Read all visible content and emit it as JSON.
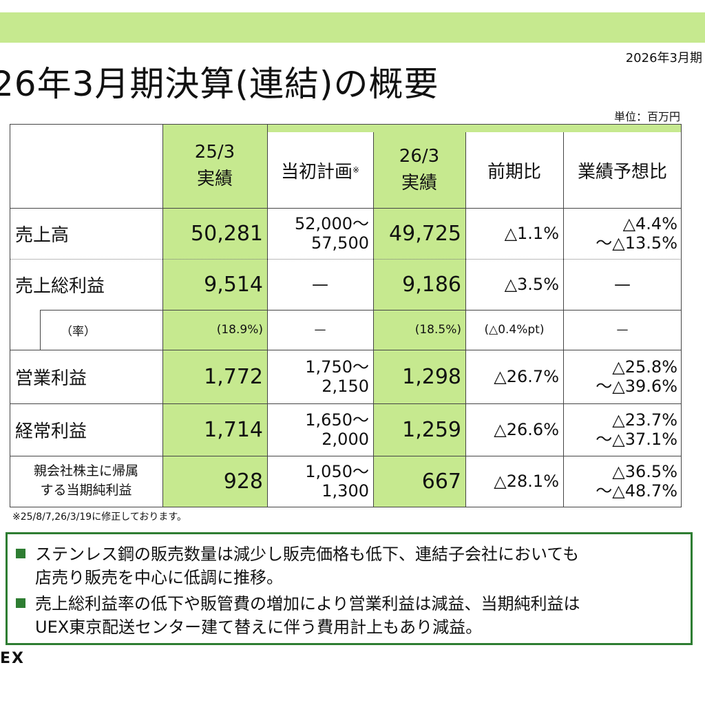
{
  "header": {
    "period_label": "2026年3月期",
    "title": "26年3月期決算(連結)の概要",
    "unit": "単位：百万円"
  },
  "table": {
    "columns": {
      "c25": [
        "25/3",
        "実績"
      ],
      "plan": "当初計画",
      "plan_mark": "※",
      "c26": [
        "26/3",
        "実績"
      ],
      "yoy": "前期比",
      "forecast": "業績予想比"
    },
    "rows": {
      "sales": {
        "label": "売上高",
        "v25": "50,281",
        "plan": [
          "52,000～",
          "57,500"
        ],
        "v26": "49,725",
        "yoy": "△1.1%",
        "forecast": [
          "△4.4%",
          "～△13.5%"
        ]
      },
      "gross": {
        "label": "売上総利益",
        "v25": "9,514",
        "plan": "—",
        "v26": "9,186",
        "yoy": "△3.5%",
        "forecast": "—"
      },
      "rate": {
        "label": "（率）",
        "v25": "(18.9%)",
        "plan": "—",
        "v26": "(18.5%)",
        "yoy": "(△0.4%pt)",
        "forecast": "—"
      },
      "operating": {
        "label": "営業利益",
        "v25": "1,772",
        "plan": [
          "1,750～",
          "2,150"
        ],
        "v26": "1,298",
        "yoy": "△26.7%",
        "forecast": [
          "△25.8%",
          "～△39.6%"
        ]
      },
      "ordinary": {
        "label": "経常利益",
        "v25": "1,714",
        "plan": [
          "1,650～",
          "2,000"
        ],
        "v26": "1,259",
        "yoy": "△26.6%",
        "forecast": [
          "△23.7%",
          "～△37.1%"
        ]
      },
      "net": {
        "label": [
          "親会社株主に帰属",
          "する当期純利益"
        ],
        "v25": "928",
        "plan": [
          "1,050～",
          "1,300"
        ],
        "v26": "667",
        "yoy": "△28.1%",
        "forecast": [
          "△36.5%",
          "～△48.7%"
        ]
      }
    }
  },
  "footnote": "※25/8/7,26/3/19に修正しております。",
  "notes": [
    [
      "ステンレス鋼の販売数量は減少し販売価格も低下、連結子会社においても",
      "店売り販売を中心に低調に推移。"
    ],
    [
      "売上総利益率の低下や販管費の増加により営業利益は減益、当期純利益は",
      "UEX東京配送センター建て替えに伴う費用計上もあり減益。"
    ]
  ],
  "logo": "EX",
  "colors": {
    "accent_green": "#c6e98f",
    "box_border": "#2e7d32"
  }
}
